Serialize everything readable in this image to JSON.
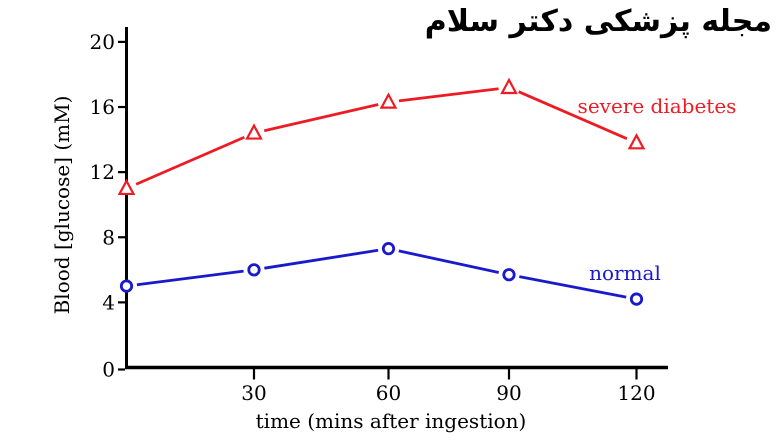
{
  "watermark": {
    "text": "مجله پزشکی دکتر سلام",
    "color": "#000000"
  },
  "chart_data": {
    "type": "line",
    "title": "",
    "x": [
      0,
      30,
      60,
      90,
      120
    ],
    "xlabel": "time (mins after ingestion)",
    "ylabel": "Blood [glucose] (mM)",
    "xticks": [
      30,
      60,
      90,
      120
    ],
    "yticks": [
      0,
      4,
      8,
      12,
      16,
      20
    ],
    "xlim": [
      0,
      127
    ],
    "ylim": [
      0,
      20.9
    ],
    "grid": false,
    "legend_position": "inline labels next to each series",
    "series": [
      {
        "name": "severe diabetes",
        "marker": "triangle",
        "color": "#ed1c24",
        "values": [
          11.0,
          14.4,
          16.3,
          17.2,
          13.8
        ]
      },
      {
        "name": "normal",
        "marker": "circle",
        "color": "#1a1acc",
        "values": [
          5.0,
          6.0,
          7.3,
          5.7,
          4.2
        ]
      }
    ]
  },
  "colors": {
    "axis": "#000000",
    "background": "#ffffff"
  }
}
